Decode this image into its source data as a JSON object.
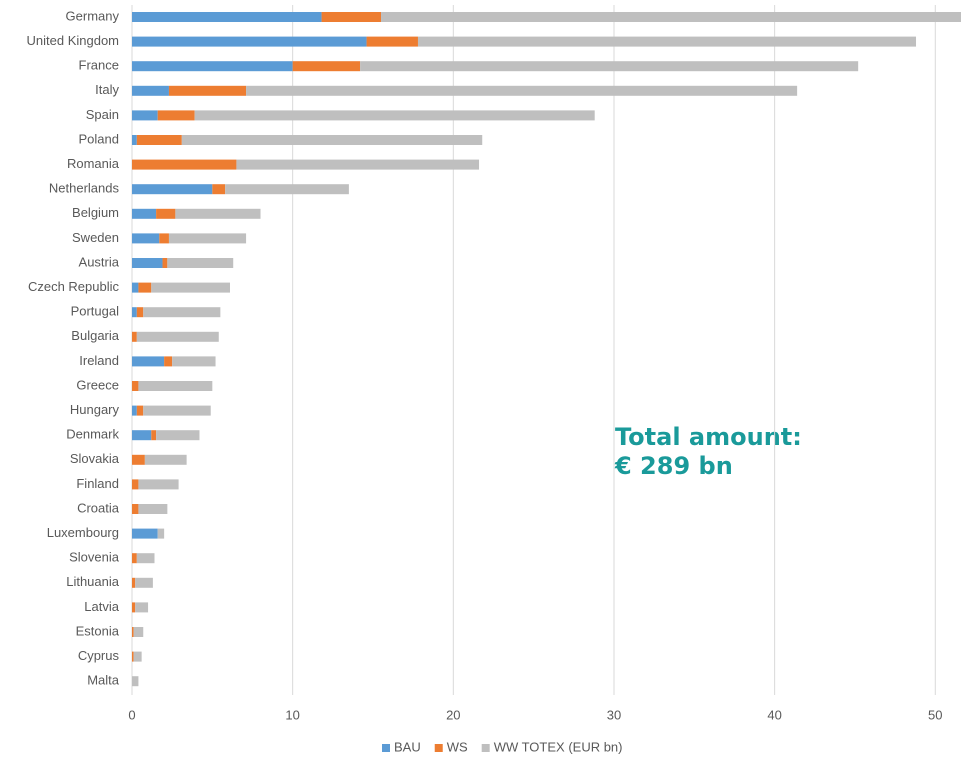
{
  "chart_data": {
    "type": "stacked_barh",
    "categories": [
      "Germany",
      "United Kingdom",
      "France",
      "Italy",
      "Spain",
      "Poland",
      "Romania",
      "Netherlands",
      "Belgium",
      "Sweden",
      "Austria",
      "Czech Republic",
      "Portugal",
      "Bulgaria",
      "Ireland",
      "Greece",
      "Hungary",
      "Denmark",
      "Slovakia",
      "Finland",
      "Croatia",
      "Luxembourg",
      "Slovenia",
      "Lithuania",
      "Latvia",
      "Estonia",
      "Cyprus",
      "Malta"
    ],
    "series": [
      {
        "name": "BAU",
        "color": "#5b9bd5",
        "values": [
          11.8,
          14.6,
          10.0,
          2.3,
          1.6,
          0.3,
          0,
          5.0,
          1.5,
          1.7,
          1.9,
          0.4,
          0.3,
          0,
          2.0,
          0,
          0.3,
          1.2,
          0,
          0,
          0,
          1.6,
          0,
          0,
          0,
          0,
          0,
          0
        ]
      },
      {
        "name": "WS",
        "color": "#ed7d31",
        "values": [
          3.7,
          3.2,
          4.2,
          4.8,
          2.3,
          2.8,
          6.5,
          0.8,
          1.2,
          0.6,
          0.3,
          0.8,
          0.4,
          0.3,
          0.5,
          0.4,
          0.4,
          0.3,
          0.8,
          0.4,
          0.4,
          0,
          0.3,
          0.2,
          0.2,
          0.1,
          0.1,
          0
        ]
      },
      {
        "name": "WW TOTEX (EUR bn)",
        "color": "#bfbfbf",
        "values": [
          36.5,
          31.0,
          31.0,
          34.3,
          24.9,
          18.7,
          15.1,
          7.7,
          5.3,
          4.8,
          4.1,
          4.9,
          4.8,
          5.1,
          2.7,
          4.6,
          4.2,
          2.7,
          2.6,
          2.5,
          1.8,
          0.4,
          1.1,
          1.1,
          0.8,
          0.6,
          0.5,
          0.4
        ]
      }
    ],
    "xlim": [
      0,
      51.6
    ],
    "xticks": [
      0,
      10,
      20,
      30,
      40,
      50
    ],
    "grid": true,
    "legend": "bottom",
    "annotation": [
      "Total amount:",
      "€ 289 bn"
    ],
    "annotation_color": "#1a9a9a"
  }
}
